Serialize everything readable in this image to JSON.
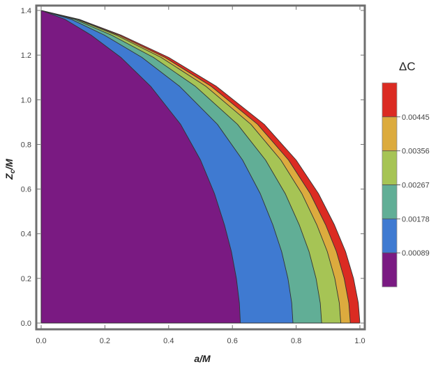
{
  "chart_data": {
    "type": "contour",
    "xlabel": "a/M",
    "ylabel": "Z_c/M",
    "ylabel_main": "Z",
    "ylabel_sub": "c",
    "ylabel_rest": "/M",
    "xlim": [
      0.0,
      1.0
    ],
    "ylim": [
      0.0,
      1.4
    ],
    "x_ticks": [
      "0.0",
      "0.2",
      "0.4",
      "0.6",
      "0.8",
      "1.0"
    ],
    "y_ticks": [
      "0.0",
      "0.2",
      "0.4",
      "0.6",
      "0.8",
      "1.0",
      "1.2",
      "1.4"
    ],
    "legend_title": "ΔC",
    "legend_position": "right",
    "contour_levels": [
      "0.00089",
      "0.00178",
      "0.00267",
      "0.00356",
      "0.00445"
    ],
    "boundary_curve": {
      "x": [
        1.0,
        0.995,
        0.98,
        0.955,
        0.92,
        0.87,
        0.8,
        0.7,
        0.55,
        0.4,
        0.25,
        0.12,
        0.03,
        0.0
      ],
      "y": [
        0.0,
        0.09,
        0.2,
        0.32,
        0.44,
        0.58,
        0.73,
        0.89,
        1.06,
        1.19,
        1.29,
        1.36,
        1.39,
        1.4
      ]
    },
    "bands": [
      {
        "range": "< 0.00089",
        "color": "#7a1a82",
        "x_at_zero": 0.625
      },
      {
        "range": "0.00089–0.00178",
        "color": "#3f7ad1",
        "x_at_zero": 0.79
      },
      {
        "range": "0.00178–0.00267",
        "color": "#61ae96",
        "x_at_zero": 0.88
      },
      {
        "range": "0.00267–0.00356",
        "color": "#a6c455",
        "x_at_zero": 0.94
      },
      {
        "range": "0.00356–0.00445",
        "color": "#dcab3e",
        "x_at_zero": 0.97
      },
      {
        "range": "> 0.00445",
        "color": "#db2b22",
        "x_at_zero": 1.0
      }
    ]
  }
}
